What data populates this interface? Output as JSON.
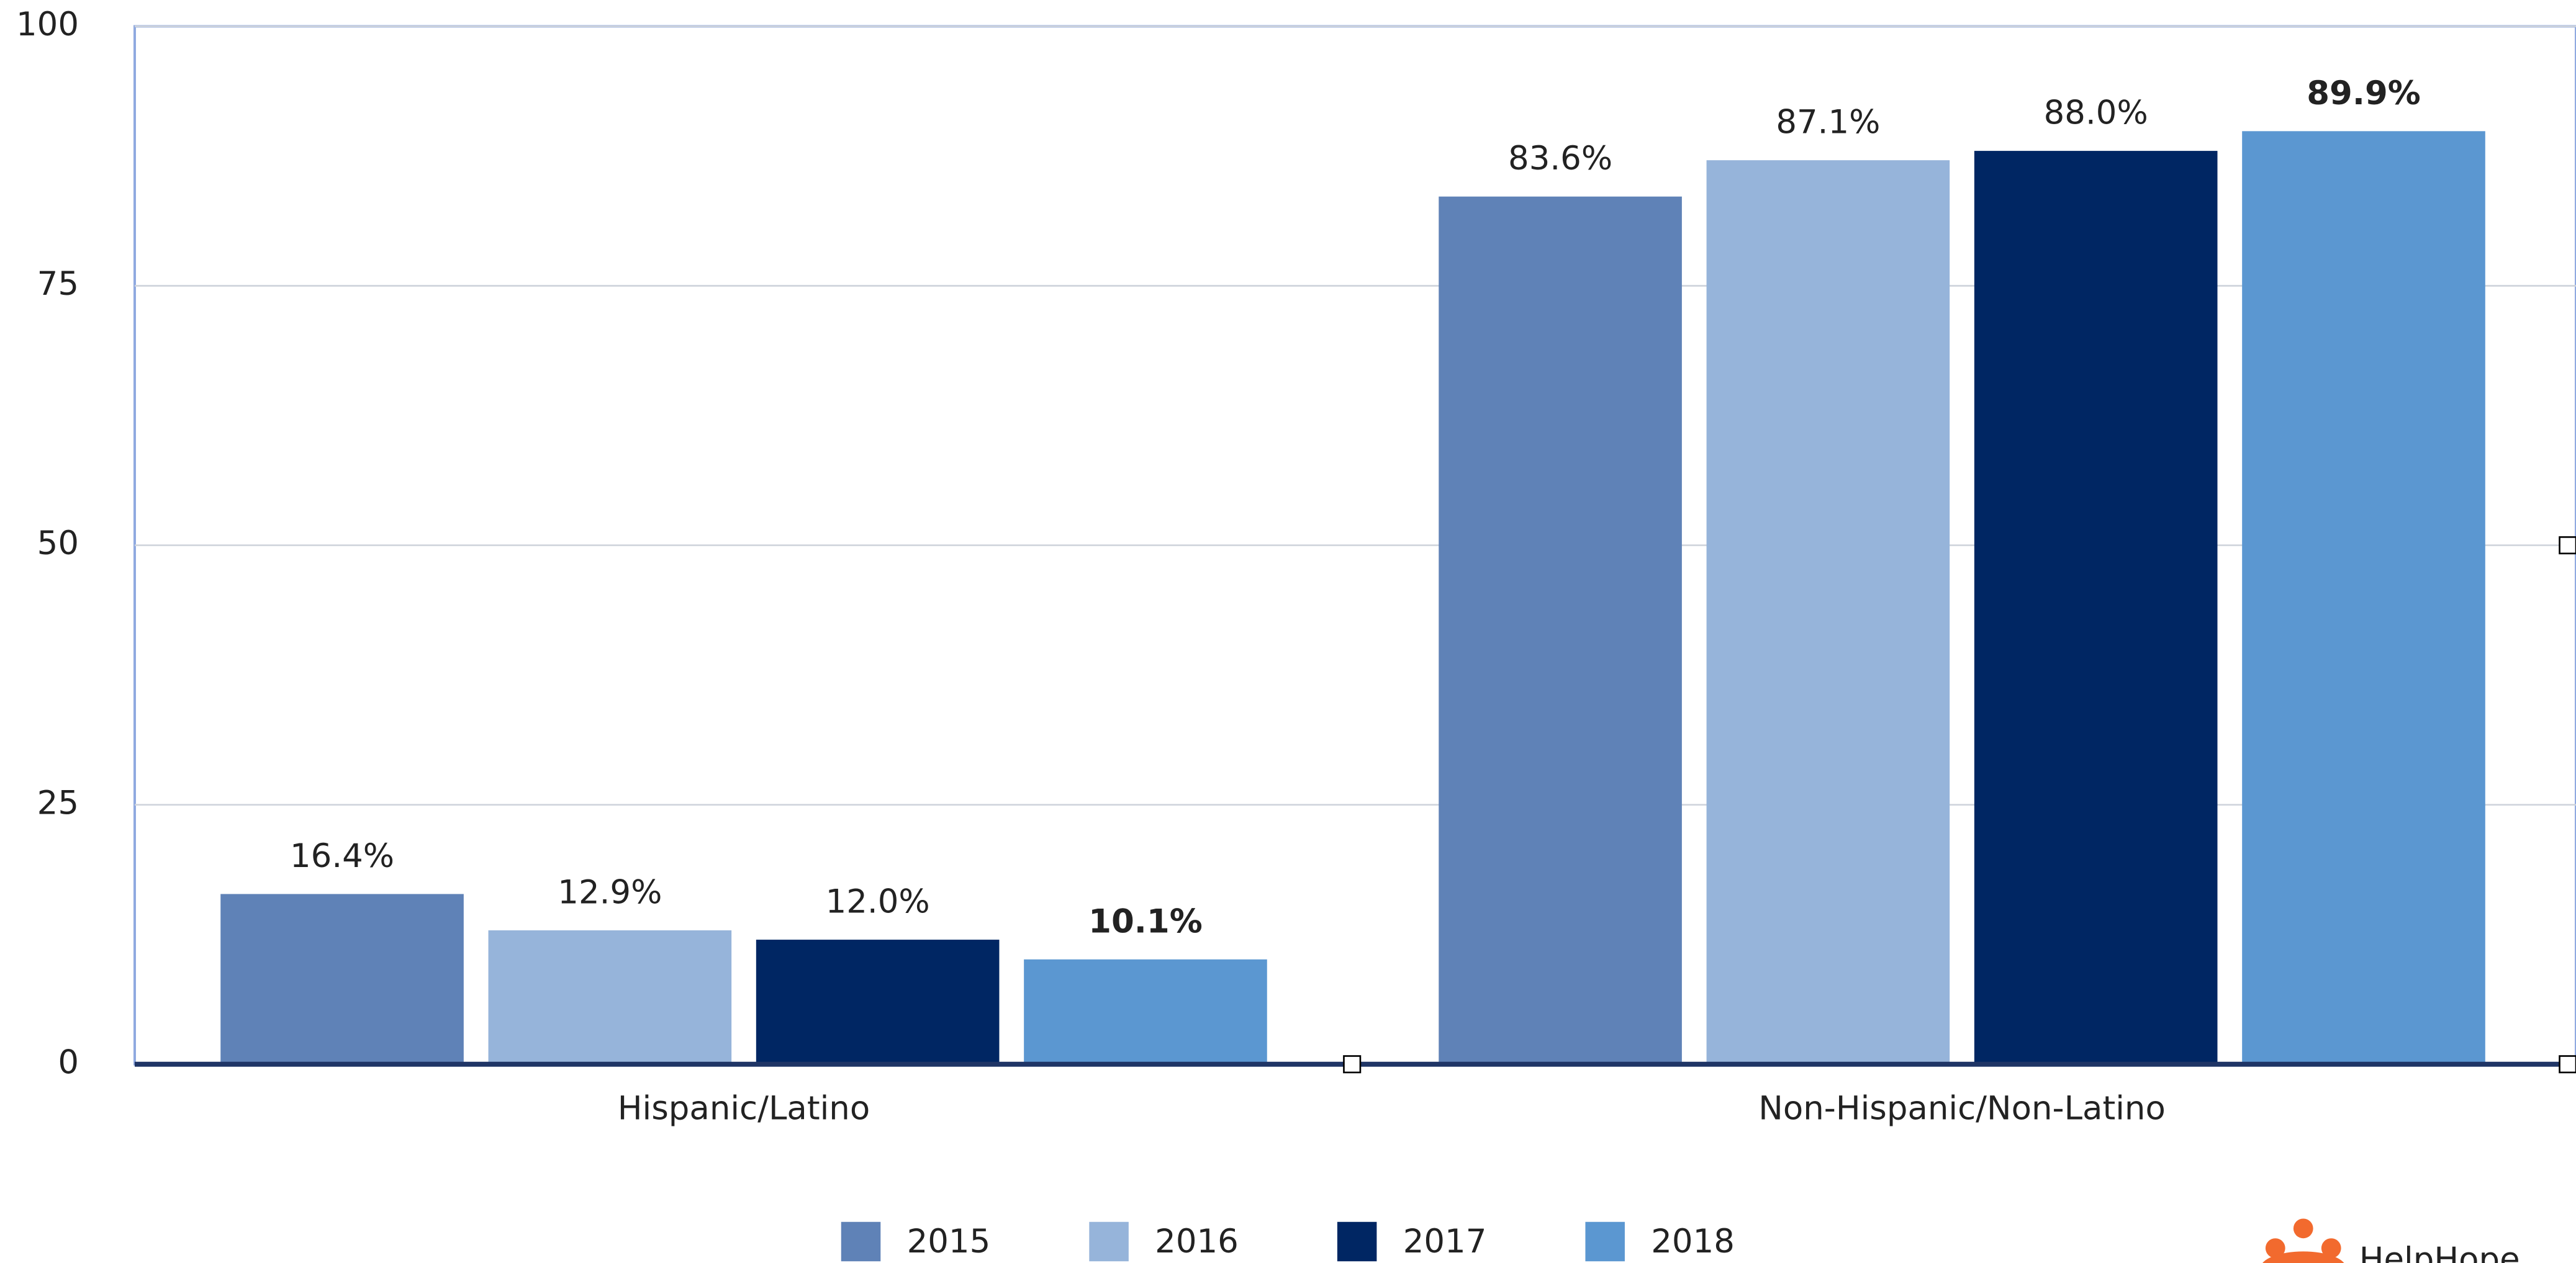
{
  "chart_data": {
    "type": "bar",
    "categories": [
      "Hispanic/Latino",
      "Non-Hispanic/Non-Latino"
    ],
    "series": [
      {
        "name": "2015",
        "color": "#5f82b7",
        "values": [
          16.4,
          83.6
        ],
        "value_labels": [
          "16.4%",
          "83.6%"
        ]
      },
      {
        "name": "2016",
        "color": "#96b4da",
        "values": [
          12.9,
          87.1
        ],
        "value_labels": [
          "12.9%",
          "87.1%"
        ]
      },
      {
        "name": "2017",
        "color": "#002663",
        "values": [
          12.0,
          88.0
        ],
        "value_labels": [
          "12.0%",
          "88.0%"
        ]
      },
      {
        "name": "2018",
        "color": "#5b97d1",
        "values": [
          10.1,
          89.9
        ],
        "value_labels": [
          "10.1%",
          "89.9%"
        ],
        "bold_labels": true
      }
    ],
    "ylim": [
      0,
      100
    ],
    "yticks": [
      0,
      25,
      50,
      75,
      100
    ],
    "grid": true,
    "legend": "bottom",
    "label_color": "#d98a2a",
    "logo_text": "HelpHope"
  }
}
